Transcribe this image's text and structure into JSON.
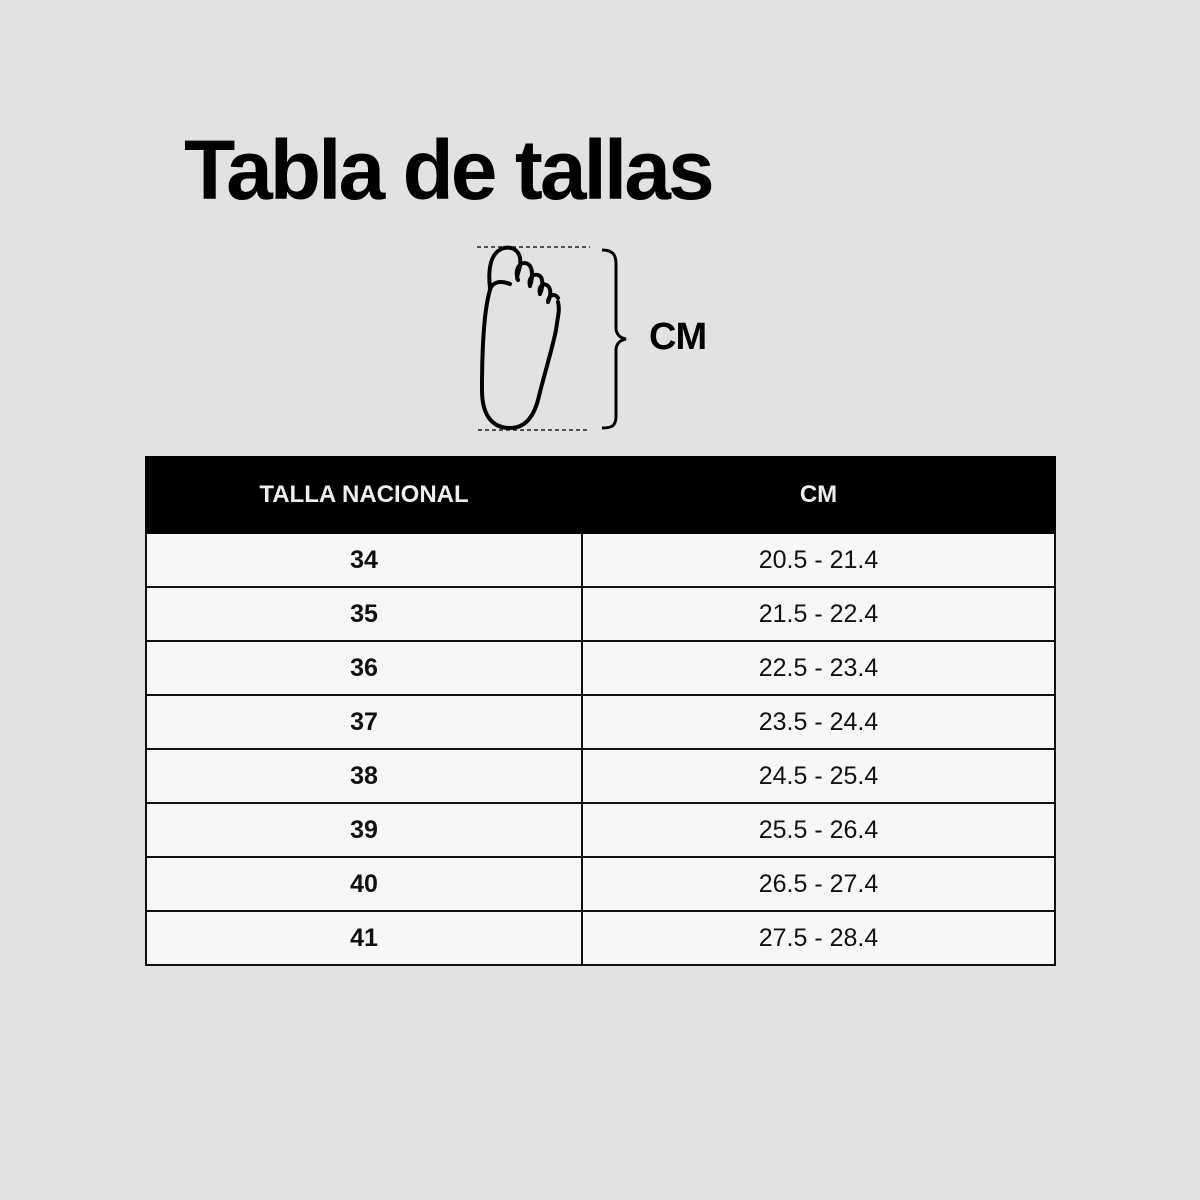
{
  "title": "Tabla de tallas",
  "diagram": {
    "icon": "foot-icon",
    "unit_label": "CM"
  },
  "table": {
    "headers": [
      "TALLA NACIONAL",
      "CM"
    ],
    "rows": [
      {
        "size": "34",
        "cm": "20.5 - 21.4"
      },
      {
        "size": "35",
        "cm": "21.5 - 22.4"
      },
      {
        "size": "36",
        "cm": "22.5 - 23.4"
      },
      {
        "size": "37",
        "cm": "23.5 - 24.4"
      },
      {
        "size": "38",
        "cm": "24.5 - 25.4"
      },
      {
        "size": "39",
        "cm": "25.5 - 26.4"
      },
      {
        "size": "40",
        "cm": "26.5 - 27.4"
      },
      {
        "size": "41",
        "cm": "27.5 - 28.4"
      }
    ]
  },
  "colors": {
    "background": "#e2e2e2",
    "header": "#000000",
    "cell": "#f8f7f8"
  }
}
